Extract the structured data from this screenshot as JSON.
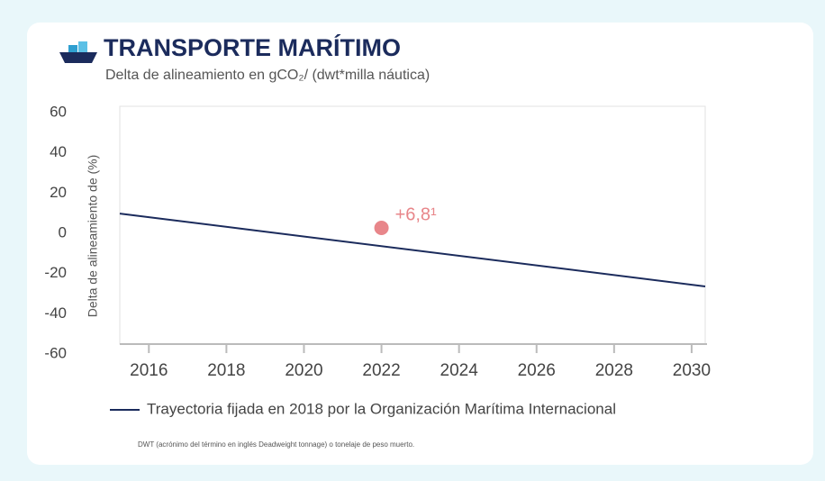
{
  "chart_data": {
    "type": "line",
    "title": "TRANSPORTE MARÍTIMO",
    "subtitle": "Delta de alineamiento en gCO₂/ (dwt*milla náutica)",
    "y_label": "Delta de alineamiento de (%)",
    "x": [
      2015.25,
      2030.35
    ],
    "series": [
      {
        "name": "Trayectoria fijada en 2018 por la Organización Marítima Internacional",
        "color": "#1b2b5c",
        "values": [
          9.8,
          -26.4
        ]
      }
    ],
    "points": [
      {
        "x": 2022,
        "value": 2.7,
        "color": "#e8868a"
      }
    ],
    "annotation": "+6,8¹",
    "xlim": [
      2015.25,
      2030.35
    ],
    "xticks": [
      2016,
      2018,
      2020,
      2022,
      2024,
      2026,
      2028,
      2030
    ],
    "ylim": [
      -60,
      60
    ],
    "yticks": [
      60,
      40,
      20,
      0,
      -20,
      -40,
      -60
    ],
    "footnote": "DWT (acrónimo del término en inglés Deadweight tonnage) o tonelaje de peso muerto."
  }
}
